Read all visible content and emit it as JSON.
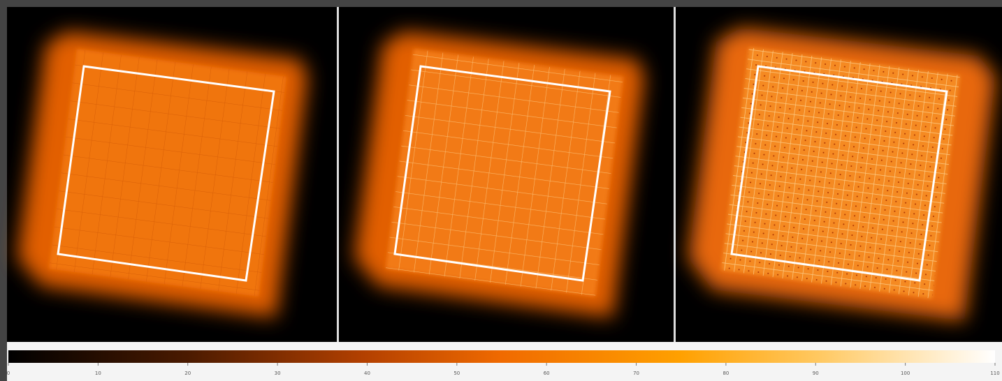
{
  "colorbar": {
    "range": [
      0,
      110
    ],
    "ticks": [
      0,
      10,
      20,
      30,
      40,
      50,
      60,
      70,
      80,
      90,
      100,
      110
    ]
  }
}
